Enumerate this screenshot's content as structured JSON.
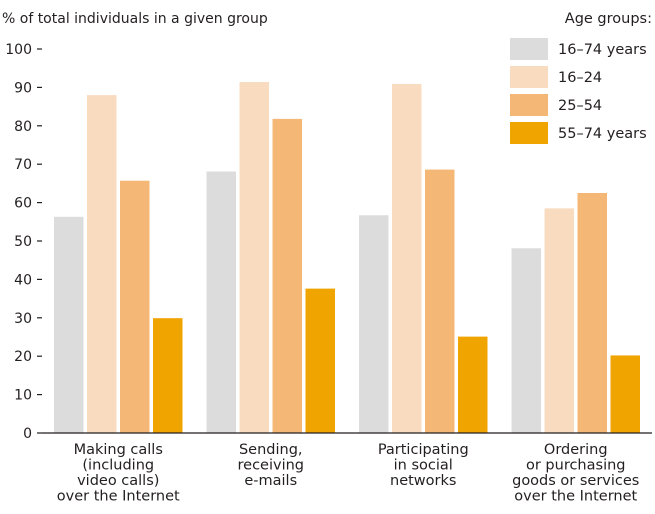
{
  "chart_data": {
    "type": "bar",
    "ylabel": "% of total individuals in a given group",
    "ylim": [
      0,
      100
    ],
    "yticks": [
      0,
      10,
      20,
      30,
      40,
      50,
      60,
      70,
      80,
      90,
      100
    ],
    "grid": false,
    "legend_position": "top-right",
    "legend_title": "Age groups:",
    "categories": [
      [
        "Making calls",
        "(including",
        "video calls)",
        "over the Internet"
      ],
      [
        "Sending,",
        "receiving",
        "e-mails"
      ],
      [
        "Participating",
        "in social",
        "networks"
      ],
      [
        "Ordering",
        "or purchasing",
        "goods or services",
        "over the Internet"
      ]
    ],
    "series": [
      {
        "name": "16–74 years",
        "color": "#dcdcdc",
        "values": [
          56.3,
          68.1,
          56.7,
          48.1
        ]
      },
      {
        "name": "16–24",
        "color": "#f9dcc0",
        "values": [
          88.0,
          91.4,
          90.9,
          58.5
        ]
      },
      {
        "name": "25–54",
        "color": "#f5b775",
        "values": [
          65.7,
          81.8,
          68.6,
          62.5
        ]
      },
      {
        "name": "55–74 years",
        "color": "#f0a400",
        "values": [
          29.9,
          37.6,
          25.1,
          20.2
        ]
      }
    ]
  }
}
